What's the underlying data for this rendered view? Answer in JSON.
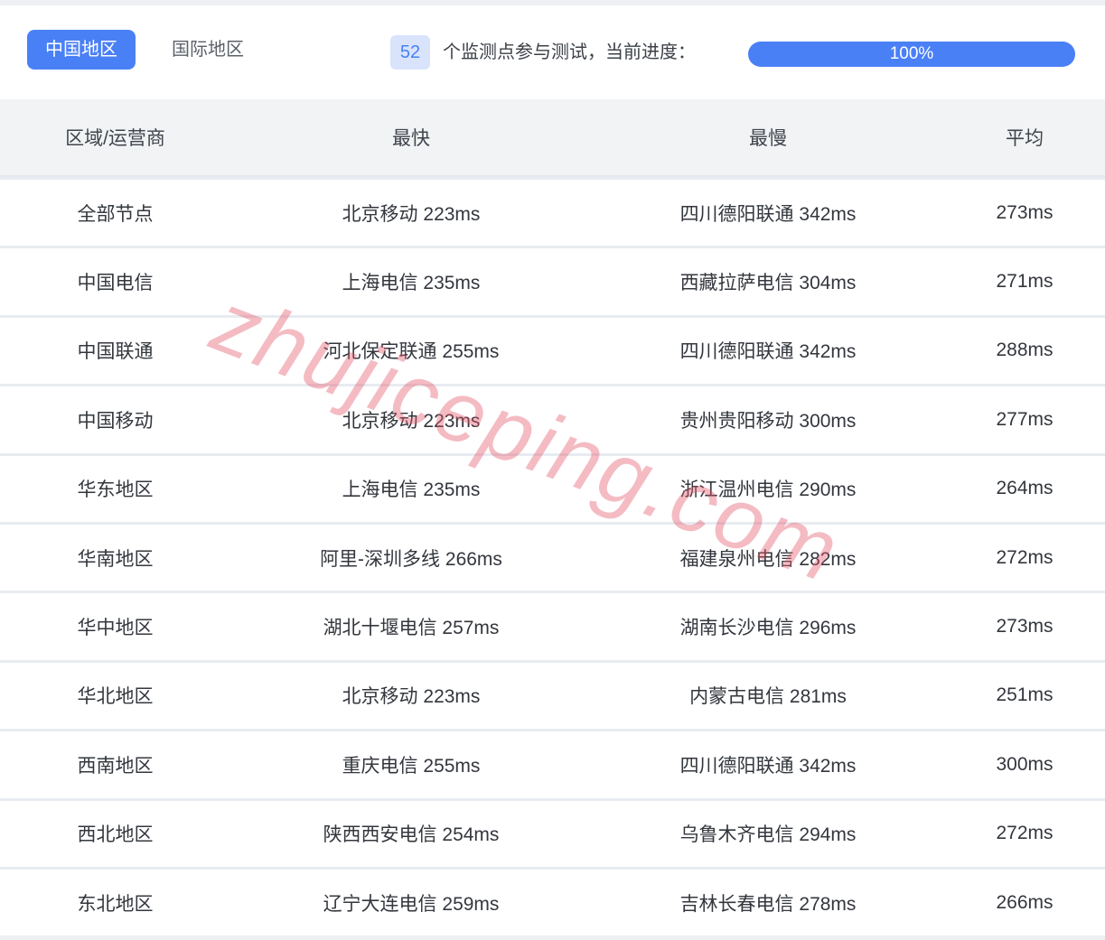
{
  "tabs": {
    "china": "中国地区",
    "international": "国际地区"
  },
  "monitor": {
    "count": "52",
    "label": "个监测点参与测试，当前进度：",
    "progress_percent": "100%"
  },
  "table": {
    "headers": [
      "区域/运营商",
      "最快",
      "最慢",
      "平均"
    ],
    "rows": [
      {
        "region": "全部节点",
        "fastest": "北京移动 223ms",
        "slowest": "四川德阳联通 342ms",
        "avg": "273ms"
      },
      {
        "region": "中国电信",
        "fastest": "上海电信 235ms",
        "slowest": "西藏拉萨电信 304ms",
        "avg": "271ms"
      },
      {
        "region": "中国联通",
        "fastest": "河北保定联通 255ms",
        "slowest": "四川德阳联通 342ms",
        "avg": "288ms"
      },
      {
        "region": "中国移动",
        "fastest": "北京移动 223ms",
        "slowest": "贵州贵阳移动 300ms",
        "avg": "277ms"
      },
      {
        "region": "华东地区",
        "fastest": "上海电信 235ms",
        "slowest": "浙江温州电信 290ms",
        "avg": "264ms"
      },
      {
        "region": "华南地区",
        "fastest": "阿里-深圳多线 266ms",
        "slowest": "福建泉州电信 282ms",
        "avg": "272ms"
      },
      {
        "region": "华中地区",
        "fastest": "湖北十堰电信 257ms",
        "slowest": "湖南长沙电信 296ms",
        "avg": "273ms"
      },
      {
        "region": "华北地区",
        "fastest": "北京移动 223ms",
        "slowest": "内蒙古电信 281ms",
        "avg": "251ms"
      },
      {
        "region": "西南地区",
        "fastest": "重庆电信 255ms",
        "slowest": "四川德阳联通 342ms",
        "avg": "300ms"
      },
      {
        "region": "西北地区",
        "fastest": "陕西西安电信 254ms",
        "slowest": "乌鲁木齐电信 294ms",
        "avg": "272ms"
      },
      {
        "region": "东北地区",
        "fastest": "辽宁大连电信 259ms",
        "slowest": "吉林长春电信 278ms",
        "avg": "266ms"
      }
    ]
  },
  "watermark": "zhujiceping.com",
  "colors": {
    "accent_blue": "#4a80f6",
    "badge_bg": "#d9e3fc",
    "table_header_bg": "#f2f3f5",
    "row_separator": "#e8ecf1",
    "watermark_pink": "rgba(227,86,106,0.40)"
  }
}
